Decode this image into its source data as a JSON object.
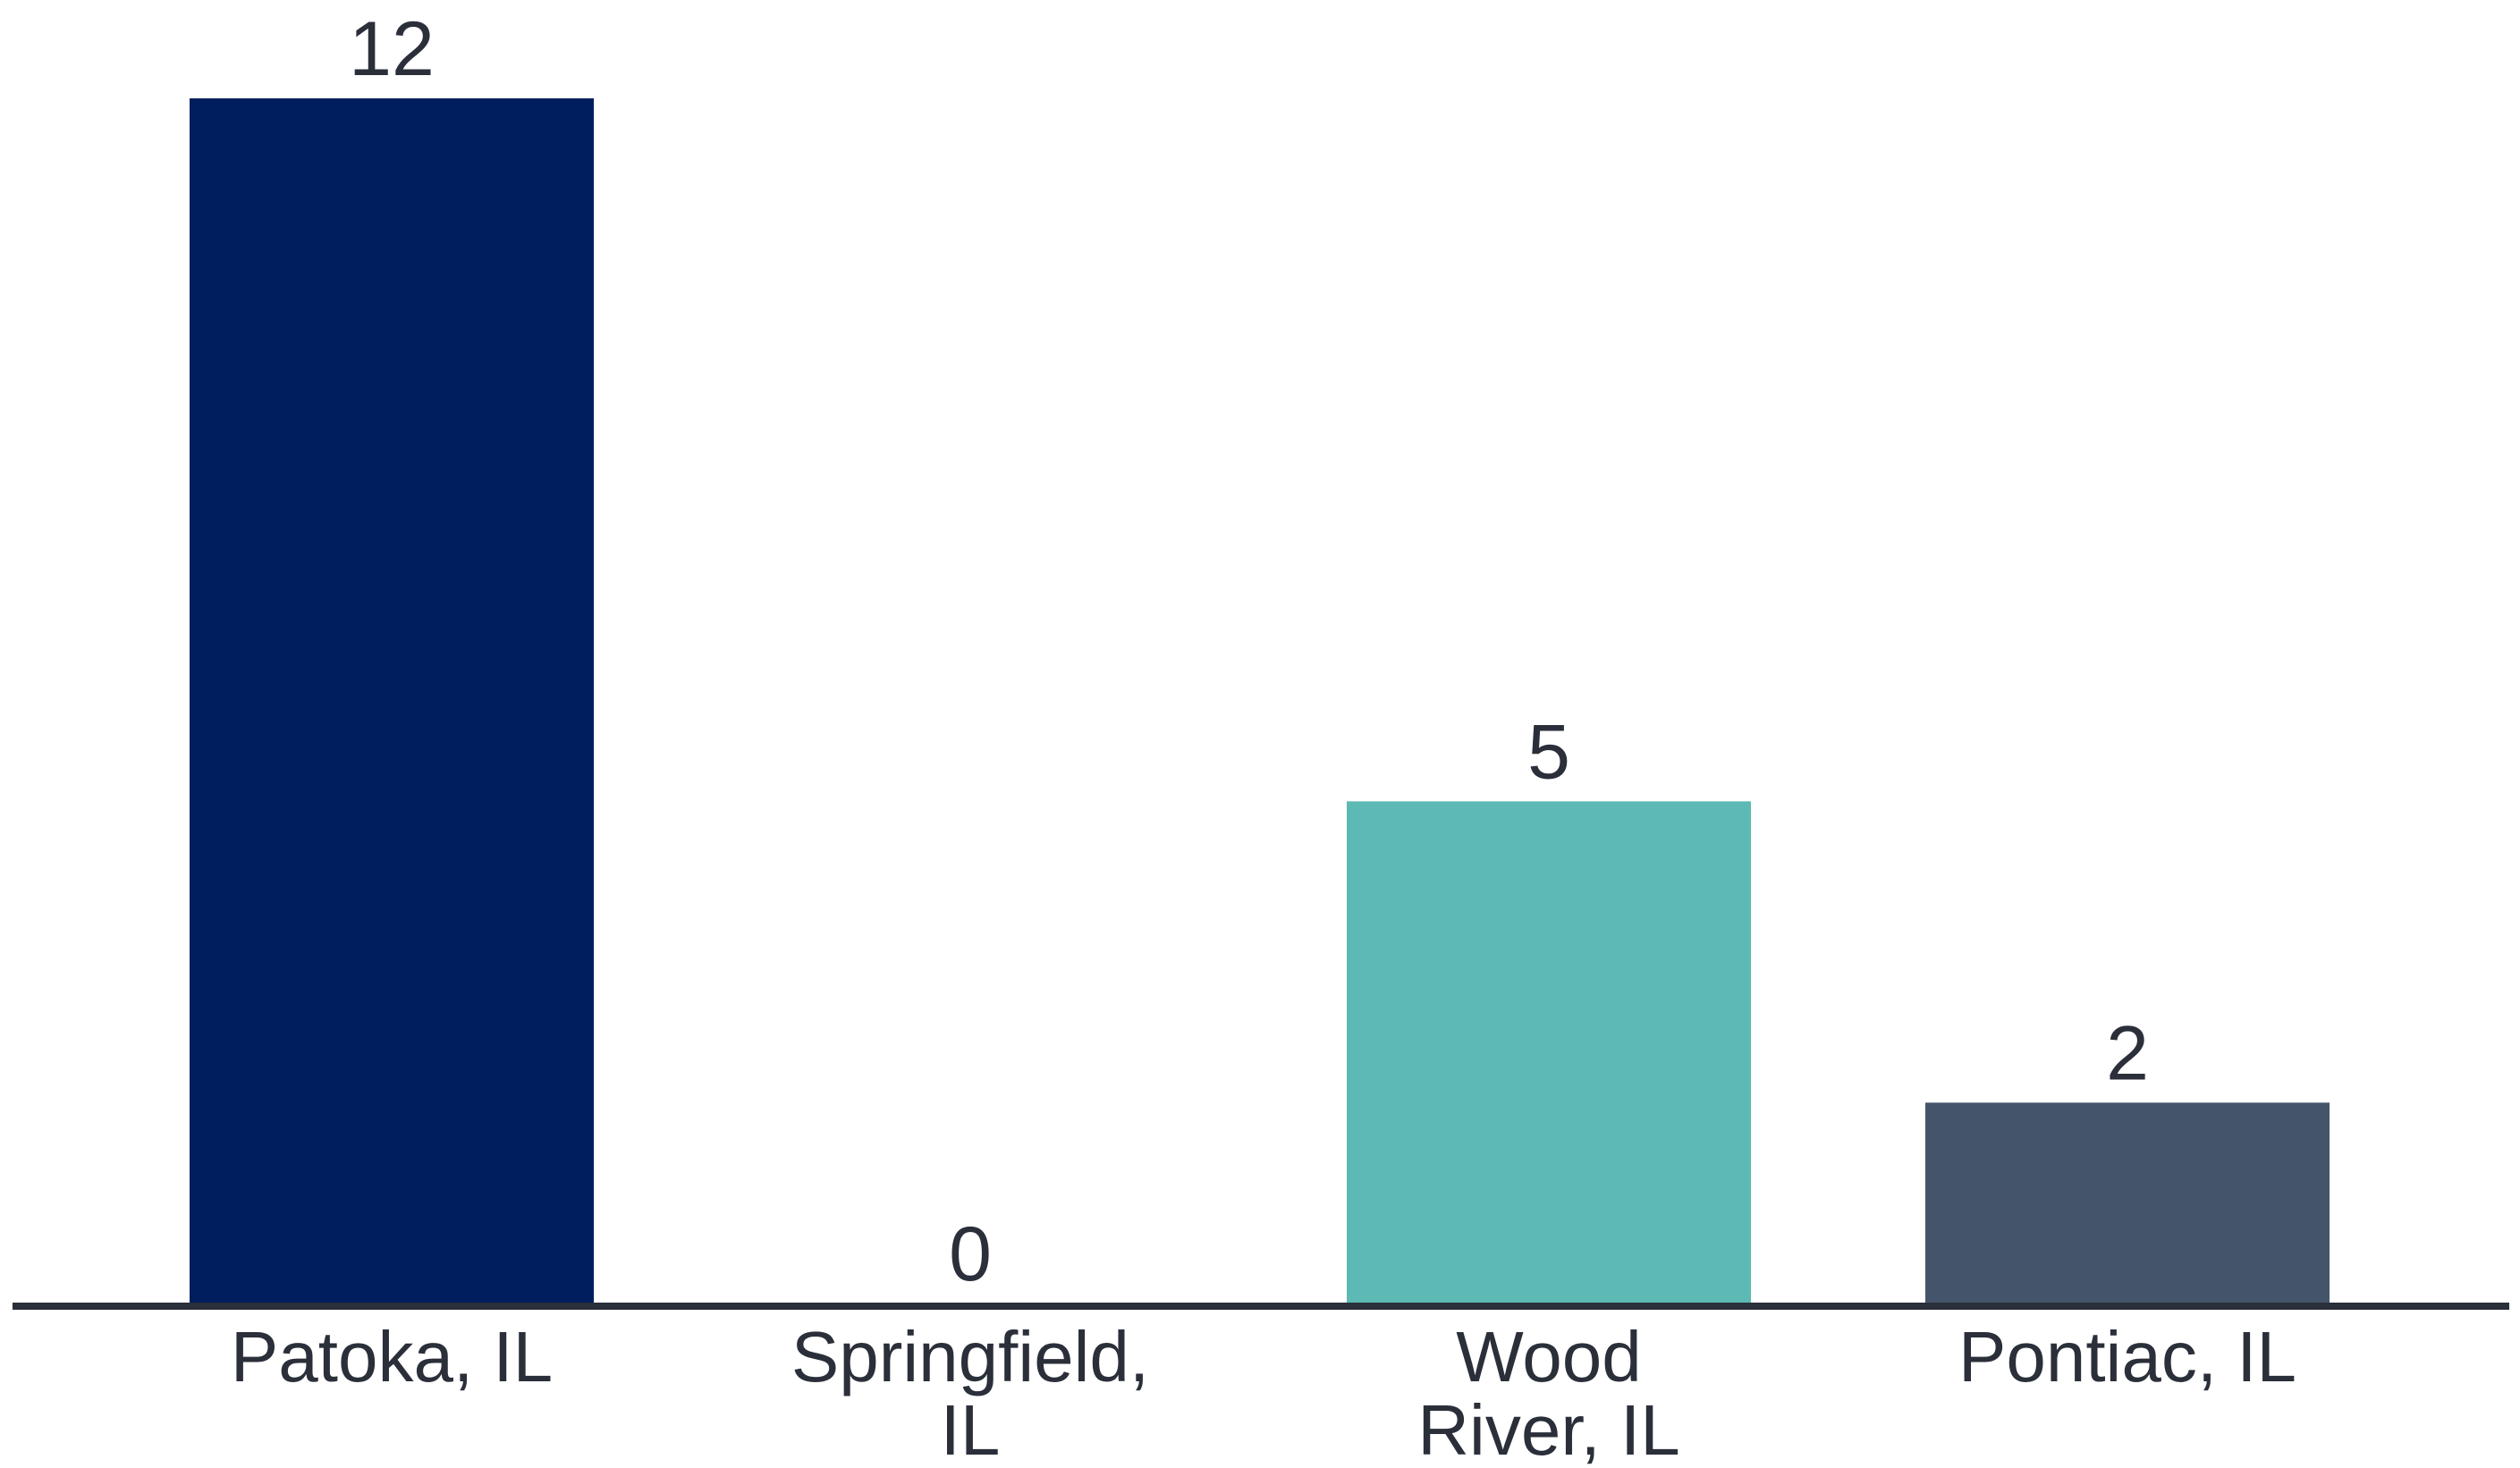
{
  "chart_data": {
    "type": "bar",
    "categories": [
      "Patoka, IL",
      "Springfield, IL",
      "Wood River, IL",
      "Pontiac, IL"
    ],
    "category_lines": [
      [
        "Patoka, IL"
      ],
      [
        "Springfield,",
        "IL"
      ],
      [
        "Wood",
        "River, IL"
      ],
      [
        "Pontiac, IL"
      ]
    ],
    "values": [
      12,
      0,
      5,
      2
    ],
    "value_labels": [
      "12",
      "0",
      "5",
      "2"
    ],
    "colors": [
      "#001e5e",
      "#001e5e",
      "#5db9b4",
      "#44546a"
    ],
    "axis_color": "#2b2f3a",
    "title": "",
    "xlabel": "",
    "ylabel": "",
    "ylim": [
      0,
      12
    ],
    "grid": false,
    "legend": "none"
  }
}
